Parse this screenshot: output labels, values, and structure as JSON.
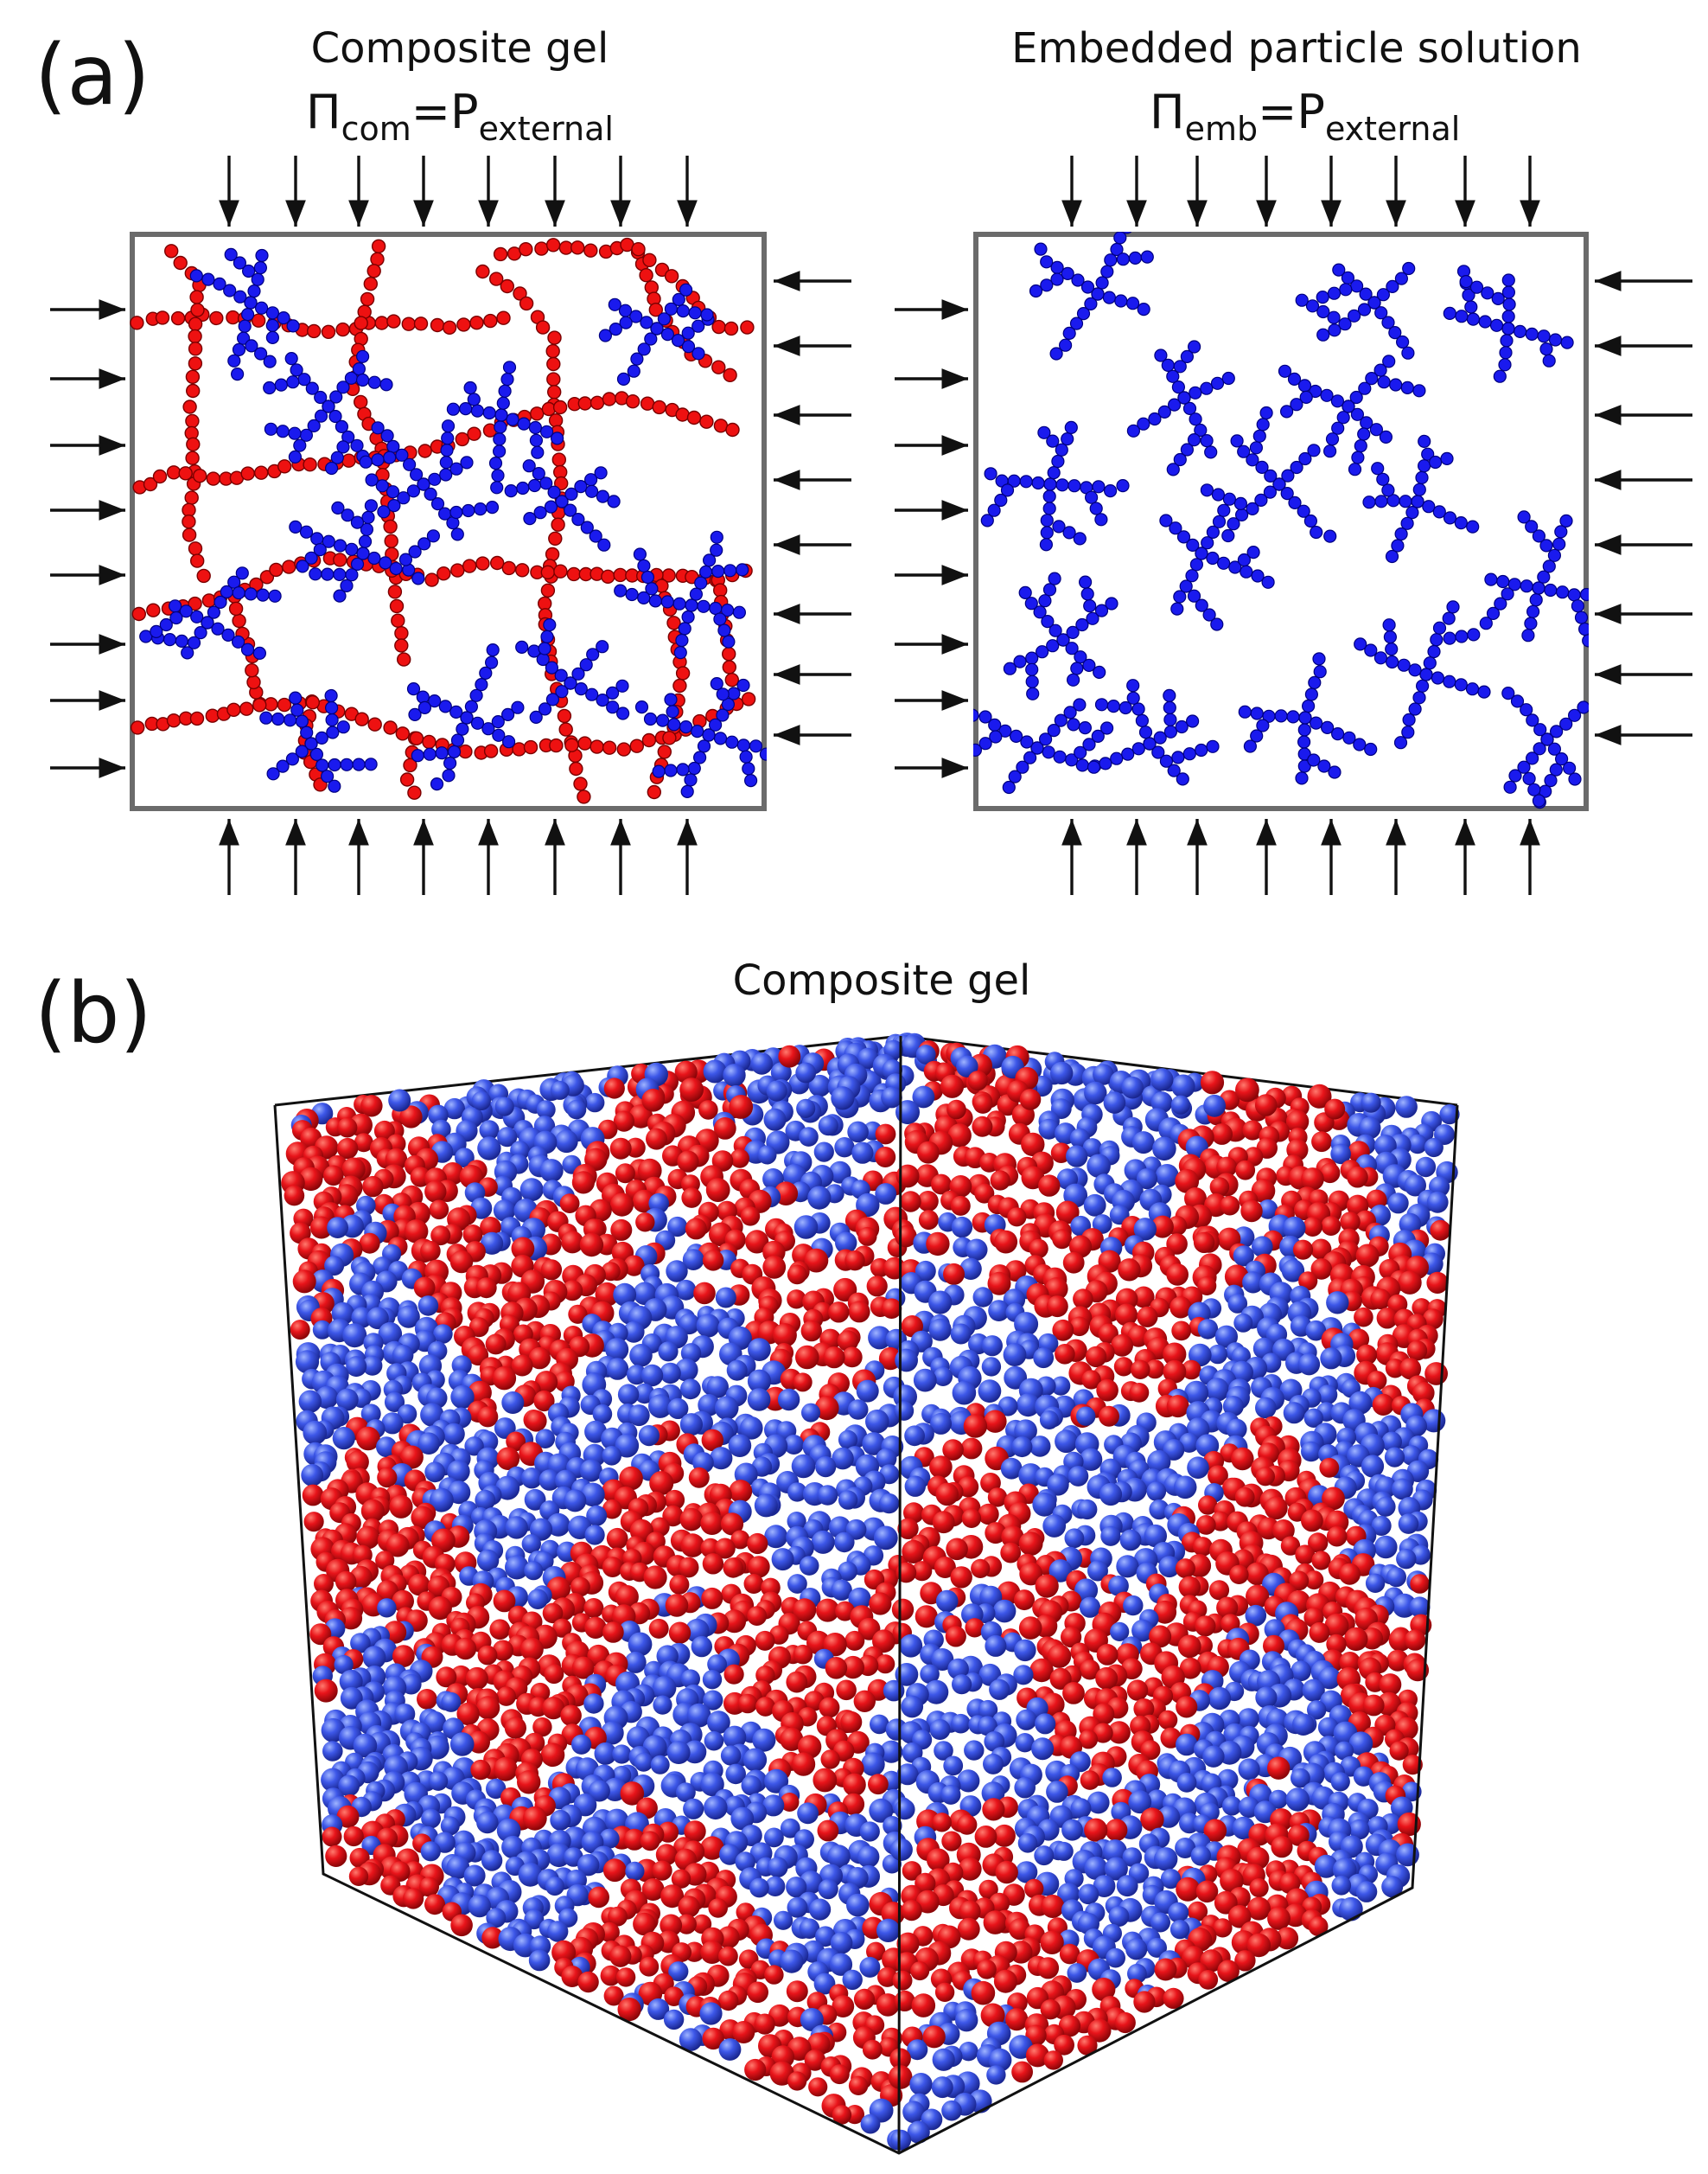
{
  "panel_a": {
    "label": "(a)",
    "left_panel": {
      "title": "Composite gel",
      "equation": {
        "symbol": "Π",
        "sub1": "com",
        "equals": "=P",
        "sub2": "external"
      }
    },
    "right_panel": {
      "title": "Embedded particle solution",
      "equation": {
        "symbol": "Π",
        "sub1": "emb",
        "equals": "=P",
        "sub2": "external"
      }
    }
  },
  "panel_b": {
    "label": "(b)",
    "title": "Composite gel"
  },
  "colors": {
    "gel_network": "#ee1111",
    "embedded_particles": "#1a1aee",
    "render_red": "#e8141a",
    "render_blue": "#3d57e8",
    "frame": "#6b6b6b"
  }
}
